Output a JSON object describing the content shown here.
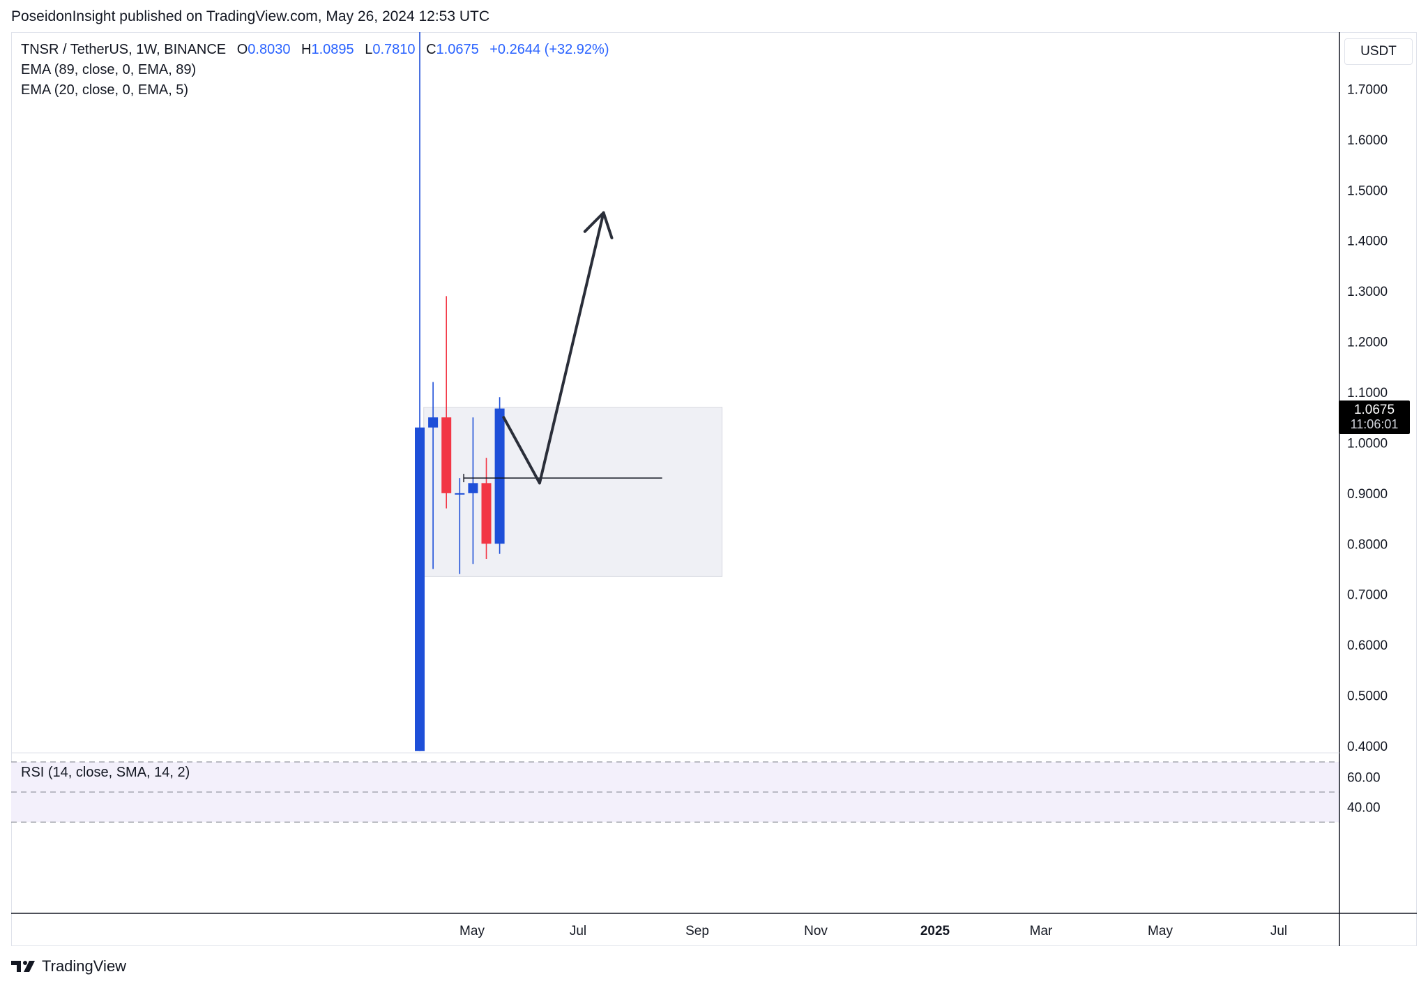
{
  "published": "PoseidonInsight published on TradingView.com, May 26, 2024 12:53 UTC",
  "legend": {
    "symbol": "TNSR / TetherUS, 1W, BINANCE",
    "open_label": "O",
    "open": "0.8030",
    "high_label": "H",
    "high": "1.0895",
    "low_label": "L",
    "low": "0.7810",
    "close_label": "C",
    "close": "1.0675",
    "change": "+0.2644 (+32.92%)",
    "ema1": "EMA (89, close, 0, EMA, 89)",
    "ema2": "EMA (20, close, 0, EMA, 5)"
  },
  "currency": "USDT",
  "last_price": {
    "value": "1.0675",
    "countdown": "11:06:01"
  },
  "rsi_title": "RSI (14, close, SMA, 14, 2)",
  "footer_brand": "TradingView",
  "colors": {
    "up": "#1e4fd8",
    "down": "#f23645",
    "range_fill": "#eff0f5",
    "rsi_band": "#f3f0fb",
    "axis": "#131722"
  },
  "chart_data": {
    "type": "candlestick",
    "price_axis": {
      "ticks": [
        "1.7000",
        "1.6000",
        "1.5000",
        "1.4000",
        "1.3000",
        "1.2000",
        "1.1000",
        "1.0000",
        "0.9000",
        "0.8000",
        "0.7000",
        "0.6000",
        "0.5000",
        "0.4000"
      ],
      "ylim": [
        0.39,
        1.78
      ]
    },
    "rsi_axis": {
      "ticks": [
        "60.00",
        "40.00"
      ],
      "band": [
        30,
        70
      ]
    },
    "x_axis": {
      "labels": [
        "May",
        "Jul",
        "Sep",
        "Nov",
        "2025",
        "Mar",
        "May",
        "Jul"
      ],
      "bold": [
        "2025"
      ]
    },
    "candles": [
      {
        "week": 0,
        "open": 0.39,
        "high": 2.4,
        "low": 0.39,
        "close": 1.03
      },
      {
        "week": 1,
        "open": 1.03,
        "high": 1.12,
        "low": 0.75,
        "close": 1.05
      },
      {
        "week": 2,
        "open": 1.05,
        "high": 1.29,
        "low": 0.87,
        "close": 0.9
      },
      {
        "week": 3,
        "open": 0.9,
        "high": 0.93,
        "low": 0.74,
        "close": 0.9
      },
      {
        "week": 4,
        "open": 0.9,
        "high": 1.05,
        "low": 0.76,
        "close": 0.92
      },
      {
        "week": 5,
        "open": 0.92,
        "high": 0.97,
        "low": 0.77,
        "close": 0.8
      },
      {
        "week": 6,
        "open": 0.8,
        "high": 1.09,
        "low": 0.78,
        "close": 1.0675
      }
    ],
    "annotations": {
      "range_box": {
        "week_start": 0.3,
        "week_end": 22.7,
        "price_low": 0.735,
        "price_high": 1.07
      },
      "support_line": {
        "week_start": 3.3,
        "week_end": 18.2,
        "price": 0.93
      },
      "projection_path": [
        {
          "week": 6.3,
          "price": 1.05
        },
        {
          "week": 9.0,
          "price": 0.92
        },
        {
          "week": 13.8,
          "price": 1.455
        }
      ]
    }
  }
}
